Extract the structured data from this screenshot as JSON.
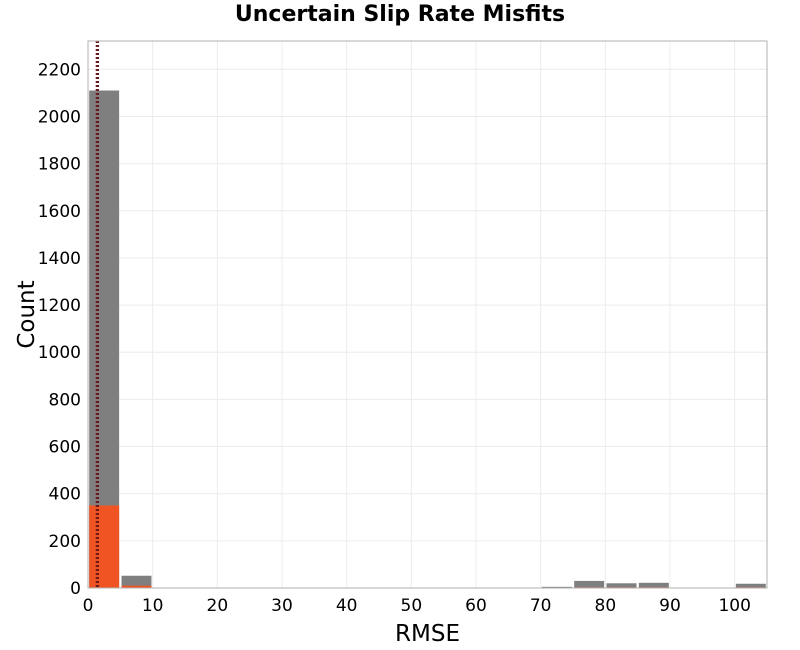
{
  "chart_data": {
    "type": "bar",
    "title": "Uncertain Slip Rate Misfits",
    "xlabel": "RMSE",
    "ylabel": "Count",
    "xlim": [
      0,
      105
    ],
    "ylim": [
      0,
      2320
    ],
    "grid": true,
    "bin_width": 5,
    "x_ticks": [
      0,
      10,
      20,
      30,
      40,
      50,
      60,
      70,
      80,
      90,
      100
    ],
    "y_ticks": [
      0,
      200,
      400,
      600,
      800,
      1000,
      1200,
      1400,
      1600,
      1800,
      2000,
      2200
    ],
    "series": [
      {
        "color": "#7f7f7f",
        "bins": [
          {
            "x0": 0,
            "x1": 5,
            "count": 2110
          },
          {
            "x0": 5,
            "x1": 10,
            "count": 52
          },
          {
            "x0": 10,
            "x1": 15,
            "count": 2
          },
          {
            "x0": 15,
            "x1": 20,
            "count": 1
          },
          {
            "x0": 20,
            "x1": 25,
            "count": 1
          },
          {
            "x0": 25,
            "x1": 30,
            "count": 1
          },
          {
            "x0": 40,
            "x1": 45,
            "count": 2
          },
          {
            "x0": 70,
            "x1": 75,
            "count": 5
          },
          {
            "x0": 75,
            "x1": 80,
            "count": 30
          },
          {
            "x0": 80,
            "x1": 85,
            "count": 20
          },
          {
            "x0": 85,
            "x1": 90,
            "count": 22
          },
          {
            "x0": 100,
            "x1": 105,
            "count": 18
          }
        ]
      },
      {
        "color": "#f05423",
        "bins": [
          {
            "x0": 0,
            "x1": 5,
            "count": 350
          },
          {
            "x0": 5,
            "x1": 10,
            "count": 10
          },
          {
            "x0": 70,
            "x1": 75,
            "count": 2
          },
          {
            "x0": 75,
            "x1": 80,
            "count": 3
          },
          {
            "x0": 80,
            "x1": 85,
            "count": 3
          },
          {
            "x0": 85,
            "x1": 90,
            "count": 3
          },
          {
            "x0": 100,
            "x1": 105,
            "count": 3
          }
        ]
      }
    ],
    "reference_lines": [
      {
        "x": 1.35,
        "color": "#6b1a1a",
        "style": "dotted"
      },
      {
        "x": 1.55,
        "color": "#6b1a1a",
        "style": "dotted"
      }
    ]
  }
}
